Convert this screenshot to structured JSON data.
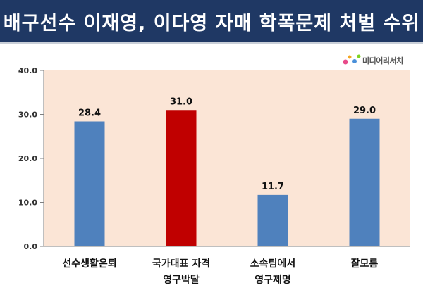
{
  "title": "배구선수 이재영, 이다영 자매 학폭문제 처벌 수위",
  "logo": {
    "word": "미디어리서치",
    "dot_colors": [
      "#e84a8a",
      "#f5a623",
      "#4a90d9",
      "#7ed321"
    ]
  },
  "colors": {
    "title_bg": "#1f3864",
    "plot_bg": "#fbe5d6",
    "bar_default": "#4f81bd",
    "bar_highlight": "#c00000"
  },
  "chart_data": {
    "type": "bar",
    "title": "배구선수 이재영, 이다영 자매 학폭문제 처벌 수위",
    "categories": [
      [
        "선수생활은퇴"
      ],
      [
        "국가대표 자격",
        "영구박탈"
      ],
      [
        "소속팀에서",
        "영구제명"
      ],
      [
        "잘모름"
      ]
    ],
    "values": [
      28.4,
      31.0,
      11.7,
      29.0
    ],
    "value_labels": [
      "28.4",
      "31.0",
      "11.7",
      "29.0"
    ],
    "highlight_index": 1,
    "ylim": [
      0,
      40
    ],
    "yticks": [
      0,
      10,
      20,
      30,
      40
    ],
    "ytick_labels": [
      "0.0",
      "10.0",
      "20.0",
      "30.0",
      "40.0"
    ],
    "xlabel": "",
    "ylabel": "",
    "grid": false,
    "legend": "none"
  }
}
